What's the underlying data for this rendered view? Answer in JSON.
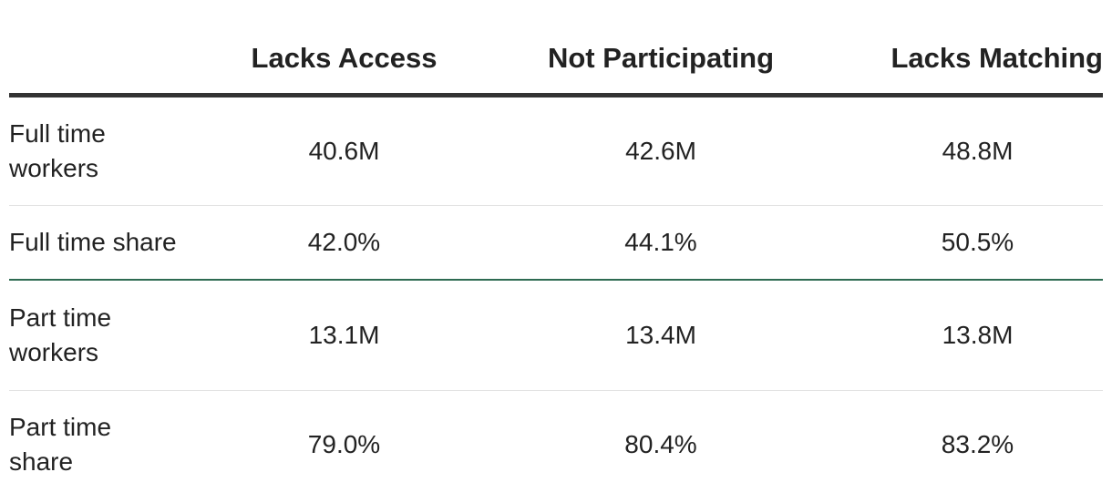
{
  "table": {
    "headers": [
      "",
      "Lacks Access",
      "Not Participating",
      "Lacks Matching"
    ],
    "rows": [
      {
        "label": "Full time workers",
        "values": [
          "40.6M",
          "42.6M",
          "48.8M"
        ]
      },
      {
        "label": "Full time share",
        "values": [
          "42.0%",
          "44.1%",
          "50.5%"
        ]
      },
      {
        "label": "Part time workers",
        "values": [
          "13.1M",
          "13.4M",
          "13.8M"
        ]
      },
      {
        "label": "Part time share",
        "values": [
          "79.0%",
          "80.4%",
          "83.2%"
        ]
      }
    ]
  },
  "colors": {
    "header_rule": "#333333",
    "section_divider": "#2e6b52",
    "row_divider": "#e2e2e2",
    "text": "#222222"
  }
}
